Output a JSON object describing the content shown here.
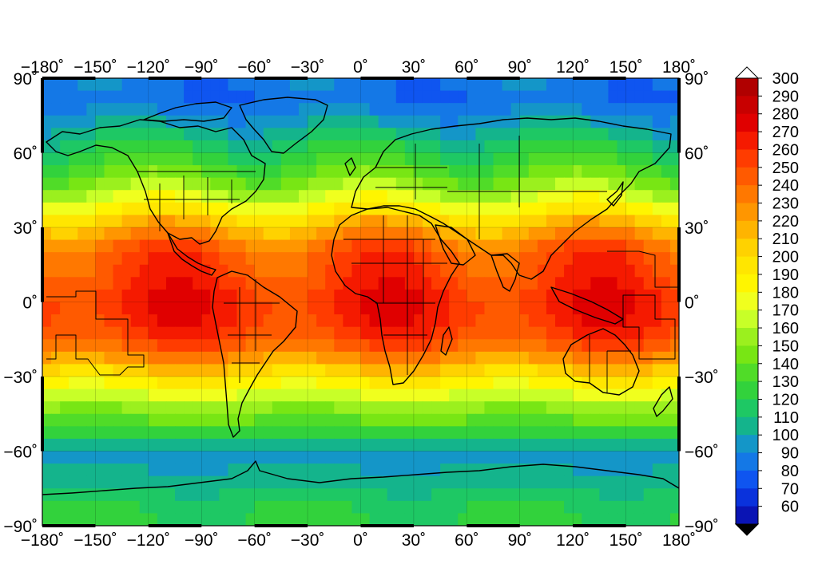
{
  "map": {
    "projection": "equirectangular",
    "lon_range": [
      -180,
      180
    ],
    "lat_range": [
      -90,
      90
    ],
    "grid": true,
    "coastlines": true,
    "political_borders": true,
    "lon_tick_labels": [
      "−180˚",
      "−150˚",
      "−120˚",
      "−90˚",
      "−60˚",
      "−30˚",
      "0˚",
      "30˚",
      "60˚",
      "90˚",
      "120˚",
      "150˚",
      "180˚"
    ],
    "lat_tick_labels": [
      "90˚",
      "60˚",
      "30˚",
      "0˚",
      "−30˚",
      "−60˚",
      "−90˚"
    ],
    "lon_ticks": [
      -180,
      -150,
      -120,
      -90,
      -60,
      -30,
      0,
      30,
      60,
      90,
      120,
      150,
      180
    ],
    "lat_ticks": [
      90,
      60,
      30,
      0,
      -30,
      -60,
      -90
    ]
  },
  "colorbar": {
    "levels": [
      "300",
      "290",
      "280",
      "270",
      "260",
      "250",
      "240",
      "230",
      "220",
      "210",
      "200",
      "190",
      "180",
      "170",
      "160",
      "150",
      "140",
      "130",
      "120",
      "110",
      "100",
      "90",
      "80",
      "70",
      "60"
    ],
    "colors": [
      "#b00000",
      "#c80000",
      "#e00000",
      "#f51a00",
      "#ff3c00",
      "#ff5a00",
      "#ff7800",
      "#ff9600",
      "#ffb400",
      "#ffd200",
      "#ffe600",
      "#fff500",
      "#f0ff1e",
      "#c8ff28",
      "#9bf01e",
      "#78e614",
      "#50dc28",
      "#32d23c",
      "#1ec864",
      "#14b48c",
      "#1496c8",
      "#1478e6",
      "#0f55f0",
      "#0a32dc",
      "#0a14b4"
    ],
    "extend_top_color": "#ffffff",
    "extend_bottom_color": "#000000"
  },
  "chart_data": {
    "type": "heatmap",
    "title": "",
    "xlabel": "",
    "ylabel": "",
    "xlim": [
      -180,
      180
    ],
    "ylim": [
      -90,
      90
    ],
    "zlim": [
      60,
      300
    ],
    "zonal_profile": {
      "lat": [
        90,
        80,
        70,
        60,
        50,
        40,
        30,
        20,
        10,
        0,
        -10,
        -20,
        -30,
        -40,
        -50,
        -60,
        -70,
        -80,
        -90
      ],
      "value": [
        95,
        90,
        110,
        130,
        150,
        180,
        220,
        250,
        255,
        265,
        260,
        240,
        200,
        165,
        140,
        105,
        110,
        125,
        130
      ]
    }
  }
}
